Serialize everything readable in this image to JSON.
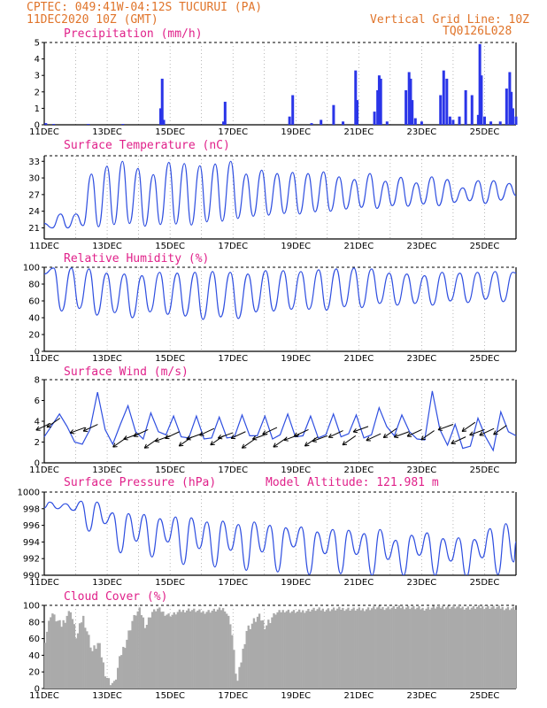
{
  "header": {
    "source_station": "CPTEC:  049:41W-04:12S  TUCURUI (PA)",
    "run_time": "11DEC2020 10Z (GMT)",
    "grid_note": "Vertical Grid Line: 10Z",
    "code": "TQ0126L028"
  },
  "colors": {
    "header": "#e0742a",
    "panel_title": "#e0218a",
    "line": "#2f4fe0",
    "bar": "#2a35e8",
    "cloud": "#aaaaaa"
  },
  "chart_data": [
    {
      "id": "precip",
      "type": "bar",
      "title": "Precipitation (mm/h)",
      "ylim": [
        0,
        5
      ],
      "yticks": [
        "0",
        "1",
        "2",
        "3",
        "4",
        "5"
      ],
      "x_start_day": 11,
      "x_end_day": 26,
      "xticks": [
        "11DEC",
        "13DEC",
        "15DEC",
        "17DEC",
        "19DEC",
        "21DEC",
        "23DEC",
        "25DEC"
      ],
      "xticks_day": [
        11,
        13,
        15,
        17,
        19,
        21,
        23,
        25
      ],
      "x": [
        11.05,
        11.3,
        12.4,
        13.5,
        14.7,
        14.75,
        14.8,
        16.7,
        16.75,
        18.8,
        18.9,
        19.5,
        19.8,
        20.2,
        20.5,
        20.9,
        20.95,
        21.5,
        21.6,
        21.65,
        21.7,
        21.9,
        22.5,
        22.6,
        22.65,
        22.7,
        22.8,
        23.0,
        23.6,
        23.7,
        23.8,
        23.9,
        24.0,
        24.2,
        24.4,
        24.6,
        24.8,
        24.85,
        24.9,
        25.0,
        25.2,
        25.5,
        25.7,
        25.8,
        25.85,
        25.9,
        26.0
      ],
      "values": [
        0.1,
        0.05,
        0.05,
        0.05,
        1.0,
        2.8,
        0.3,
        0.2,
        1.4,
        0.5,
        1.8,
        0.1,
        0.3,
        1.2,
        0.2,
        3.3,
        1.5,
        0.8,
        2.1,
        3.0,
        2.8,
        0.2,
        2.1,
        3.2,
        2.8,
        1.5,
        0.4,
        0.2,
        1.8,
        3.3,
        2.8,
        0.5,
        0.3,
        0.5,
        2.1,
        1.8,
        0.6,
        4.9,
        3.0,
        0.5,
        0.2,
        0.2,
        2.2,
        3.2,
        2.0,
        1.0,
        0.5
      ]
    },
    {
      "id": "temp",
      "type": "line",
      "title": "Surface Temperature (nC)",
      "ylim": [
        19,
        34
      ],
      "yticks": [
        "21",
        "24",
        "27",
        "30",
        "33"
      ],
      "ytick_values": [
        21,
        24,
        27,
        30,
        33
      ],
      "x_start_day": 11,
      "x_end_day": 26,
      "xticks": [
        "11DEC",
        "13DEC",
        "15DEC",
        "17DEC",
        "19DEC",
        "21DEC",
        "23DEC",
        "25DEC"
      ],
      "xticks_day": [
        11,
        13,
        15,
        17,
        19,
        21,
        23,
        25
      ],
      "minima": [
        21,
        21,
        21.4,
        21.2,
        21.6,
        21.8,
        21.3,
        21.6,
        21.7,
        21.5,
        22.1,
        22.2,
        22.7,
        23.1,
        23.3,
        23.6,
        23.5,
        23.9,
        24.0,
        24.4,
        24.7,
        24.5,
        25.0,
        24.9,
        25.3,
        25.0,
        25.6,
        25.9,
        25.4,
        26.0
      ],
      "maxima": [
        23.5,
        23.5,
        30.7,
        32.1,
        33.0,
        31.7,
        30.6,
        32.8,
        32.6,
        32.2,
        32.5,
        33.0,
        30.7,
        31.4,
        30.8,
        31.0,
        30.8,
        31.1,
        30.2,
        29.7,
        30.8,
        29.4,
        30.1,
        29.1,
        30.2,
        29.7,
        28.2,
        29.5,
        29.5,
        29.0
      ]
    },
    {
      "id": "rh",
      "type": "line",
      "title": "Relative Humidity (%)",
      "ylim": [
        0,
        100
      ],
      "yticks": [
        "0",
        "20",
        "40",
        "60",
        "80",
        "100"
      ],
      "ytick_values": [
        0,
        20,
        40,
        60,
        80,
        100
      ],
      "x_start_day": 11,
      "x_end_day": 26,
      "xticks": [
        "11DEC",
        "13DEC",
        "15DEC",
        "17DEC",
        "19DEC",
        "21DEC",
        "23DEC",
        "25DEC"
      ],
      "xticks_day": [
        11,
        13,
        15,
        17,
        19,
        21,
        23,
        25
      ],
      "maxima": [
        99,
        98,
        93,
        92,
        90,
        94,
        93,
        94,
        95,
        94,
        92,
        96,
        96,
        95,
        97,
        98
      ],
      "minima": [
        48,
        51,
        43,
        46,
        40,
        47,
        44,
        42,
        38,
        41,
        39,
        47,
        48,
        50,
        50,
        49,
        53,
        52,
        57,
        55,
        57,
        55,
        60,
        58,
        62,
        59
      ]
    },
    {
      "id": "wind",
      "type": "line",
      "title": "Surface Wind (m/s)",
      "ylim": [
        0,
        8
      ],
      "yticks": [
        "0",
        "2",
        "4",
        "6",
        "8"
      ],
      "ytick_values": [
        0,
        2,
        4,
        6,
        8
      ],
      "x_start_day": 11,
      "x_end_day": 26,
      "xticks": [
        "11DEC",
        "13DEC",
        "15DEC",
        "17DEC",
        "19DEC",
        "21DEC",
        "23DEC",
        "25DEC"
      ],
      "xticks_day": [
        11,
        13,
        15,
        17,
        19,
        21,
        23,
        25
      ],
      "speed": [
        2.5,
        3.6,
        4.7,
        3.5,
        2.0,
        1.8,
        3.2,
        6.8,
        3.2,
        1.8,
        3.7,
        5.5,
        3.0,
        2.3,
        4.8,
        3.0,
        2.7,
        4.5,
        2.5,
        2.4,
        4.5,
        2.3,
        2.4,
        4.4,
        2.4,
        2.5,
        4.6,
        2.6,
        2.6,
        4.5,
        2.3,
        2.7,
        4.7,
        2.5,
        2.6,
        4.5,
        2.4,
        2.7,
        4.7,
        2.5,
        2.8,
        4.6,
        2.4,
        2.7,
        5.3,
        3.5,
        2.6,
        4.6,
        3.0,
        2.3,
        2.2,
        6.9,
        3.2,
        1.7,
        3.7,
        1.4,
        1.6,
        4.3,
        2.5,
        1.2,
        4.9,
        3.0,
        2.6
      ],
      "arrow_days": [
        11.2,
        11.5,
        12.3,
        12.7,
        13.6,
        14.0,
        14.3,
        14.6,
        15.0,
        15.3,
        15.7,
        16.0,
        16.4,
        16.7,
        17.0,
        17.4,
        17.7,
        18.1,
        18.4,
        18.7,
        19.1,
        19.4,
        19.7,
        20.0,
        20.5,
        20.9,
        21.3,
        21.7,
        22.2,
        22.6,
        23.0,
        23.4,
        24.0,
        24.4,
        24.7,
        25.0,
        25.3,
        25.7
      ],
      "arrow_speed": [
        3.8,
        4.3,
        3.4,
        3.7,
        2.4,
        2.8,
        3.2,
        2.3,
        2.6,
        3.0,
        2.5,
        2.8,
        3.3,
        2.6,
        2.9,
        3.0,
        2.3,
        2.8,
        3.4,
        2.4,
        2.7,
        3.2,
        2.5,
        2.6,
        3.1,
        2.6,
        3.5,
        2.8,
        3.3,
        3.0,
        3.2,
        3.1,
        3.7,
        2.5,
        3.9,
        3.2,
        3.3,
        3.6
      ]
    },
    {
      "id": "pres",
      "type": "line",
      "title": "Surface Pressure (hPa)",
      "subtitle": "Model Altitude: 121.981 m",
      "ylim": [
        990,
        1000
      ],
      "yticks": [
        "990",
        "992",
        "994",
        "996",
        "998",
        "1000"
      ],
      "ytick_values": [
        990,
        992,
        994,
        996,
        998,
        1000
      ],
      "x_start_day": 11,
      "x_end_day": 26,
      "xticks": [
        "11DEC",
        "13DEC",
        "15DEC",
        "17DEC",
        "19DEC",
        "21DEC",
        "23DEC",
        "25DEC"
      ],
      "xticks_day": [
        11,
        13,
        15,
        17,
        19,
        21,
        23,
        25
      ],
      "maxima": [
        998.8,
        998.6,
        998.9,
        998.8,
        997.5,
        997.4,
        997.3,
        996.8,
        997.0,
        996.9,
        996.4,
        996.5,
        996.1,
        996.4,
        996.0,
        995.7,
        995.8,
        995.2,
        995.5,
        995.4,
        995.0,
        995.5,
        994.2,
        994.8,
        995.1,
        994.4,
        994.5,
        994.3,
        995.6,
        996.2
      ],
      "minima": [
        998.0,
        997.8,
        995.3,
        996.2,
        992.7,
        994.1,
        992.2,
        994.0,
        991.3,
        993.2,
        991.0,
        993.0,
        990.6,
        992.8,
        990.4,
        993.4,
        990.1,
        992.6,
        990.2,
        992.5,
        990.0,
        991.9,
        990.0,
        992.4,
        990.0,
        991.7,
        989.8,
        992.1,
        990.1,
        991.6
      ]
    },
    {
      "id": "cloud",
      "type": "area",
      "title": "Cloud Cover (%)",
      "ylim": [
        0,
        100
      ],
      "yticks": [
        "0",
        "20",
        "40",
        "60",
        "80",
        "100"
      ],
      "ytick_values": [
        0,
        20,
        40,
        60,
        80,
        100
      ],
      "x_start_day": 11,
      "x_end_day": 26,
      "xticks": [
        "11DEC",
        "13DEC",
        "15DEC",
        "17DEC",
        "19DEC",
        "21DEC",
        "23DEC",
        "25DEC"
      ],
      "xticks_day": [
        11,
        13,
        15,
        17,
        19,
        21,
        23,
        25
      ],
      "x": [
        11.0,
        11.2,
        11.5,
        11.8,
        12.0,
        12.2,
        12.5,
        12.7,
        12.9,
        13.0,
        13.2,
        13.4,
        13.6,
        13.8,
        14.0,
        14.2,
        14.4,
        14.6,
        14.8,
        15.0,
        15.3,
        15.6,
        16.0,
        16.4,
        16.7,
        16.9,
        17.1,
        17.4,
        17.8,
        18.0,
        18.3,
        18.6,
        19.0,
        19.5,
        20.0,
        20.5,
        21.0,
        21.5,
        22.0,
        22.5,
        23.0,
        23.5,
        24.0,
        24.5,
        25.0,
        25.5,
        26.0
      ],
      "values": [
        60,
        92,
        75,
        95,
        60,
        88,
        45,
        55,
        20,
        10,
        5,
        40,
        60,
        85,
        95,
        75,
        92,
        96,
        90,
        88,
        93,
        95,
        92,
        94,
        96,
        80,
        5,
        70,
        88,
        75,
        90,
        94,
        92,
        95,
        95,
        96,
        95,
        97,
        97,
        98,
        96,
        98,
        98,
        97,
        98,
        97,
        96
      ]
    }
  ]
}
